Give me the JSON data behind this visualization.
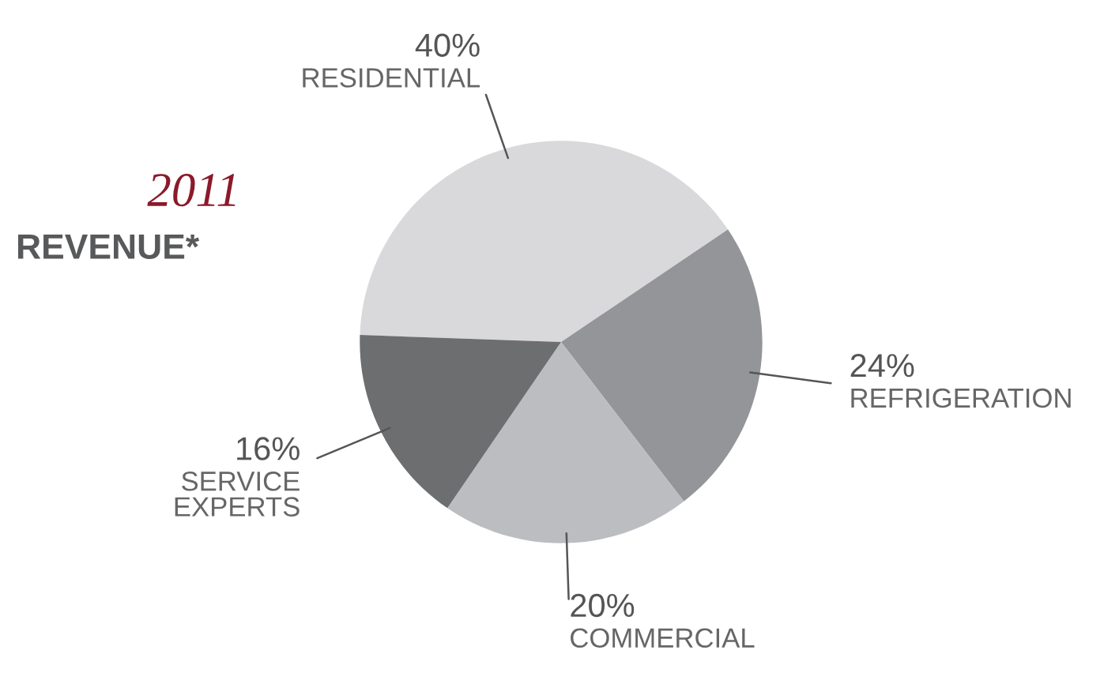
{
  "chart_data": {
    "type": "pie",
    "title": "2011",
    "subtitle": "REVENUE*",
    "categories": [
      "RESIDENTIAL",
      "REFRIGERATION",
      "COMMERCIAL",
      "SERVICE\nEXPERTS"
    ],
    "values": [
      40,
      24,
      20,
      16
    ],
    "value_labels": [
      "40%",
      "24%",
      "20%",
      "16%"
    ],
    "colors": [
      "#d9d9db",
      "#939598",
      "#bcbdc0",
      "#6d6e70"
    ],
    "legend": false
  }
}
